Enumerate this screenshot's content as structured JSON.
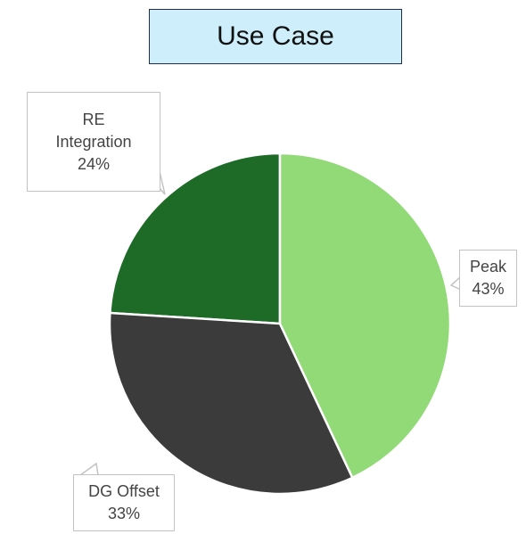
{
  "chart_data": {
    "type": "pie",
    "title": "Use Case",
    "categories": [
      "Peak",
      "DG Offset",
      "RE Integration"
    ],
    "values": [
      43,
      33,
      24
    ],
    "value_labels": [
      "43%",
      "33%",
      "24%"
    ],
    "colors": [
      "#92d977",
      "#3b3b3b",
      "#1d6b27"
    ]
  }
}
